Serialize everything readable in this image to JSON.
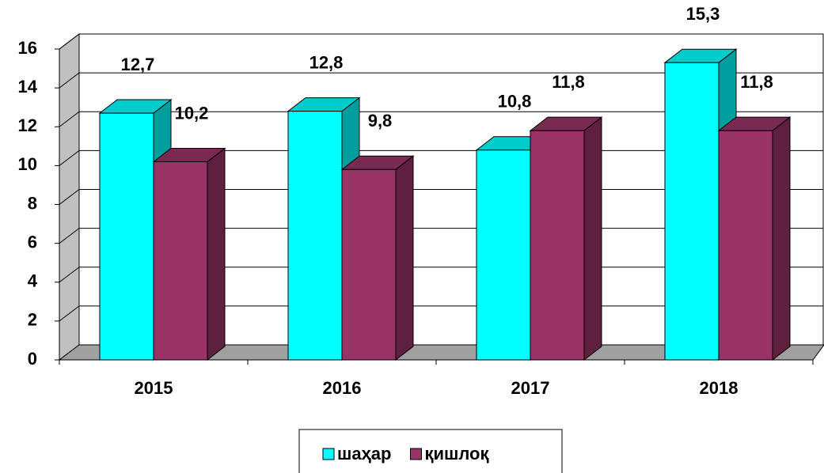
{
  "chart_data": {
    "type": "bar3d",
    "categories": [
      "2015",
      "2016",
      "2017",
      "2018"
    ],
    "series": [
      {
        "name": "шаҳар",
        "color": "#00FFFF",
        "values": [
          12.7,
          12.8,
          10.8,
          15.3
        ],
        "value_labels": [
          "12,7",
          "12,8",
          "10,8",
          "15,3"
        ]
      },
      {
        "name": "қишлоқ",
        "color": "#993366",
        "values": [
          10.2,
          9.8,
          11.8,
          11.8
        ],
        "value_labels": [
          "10,2",
          "9,8",
          "11,8",
          "11,8"
        ]
      }
    ],
    "ylim": [
      0,
      16
    ],
    "yticks": [
      0,
      2,
      4,
      6,
      8,
      10,
      12,
      14,
      16
    ],
    "grid": true,
    "legend": "bottom"
  }
}
